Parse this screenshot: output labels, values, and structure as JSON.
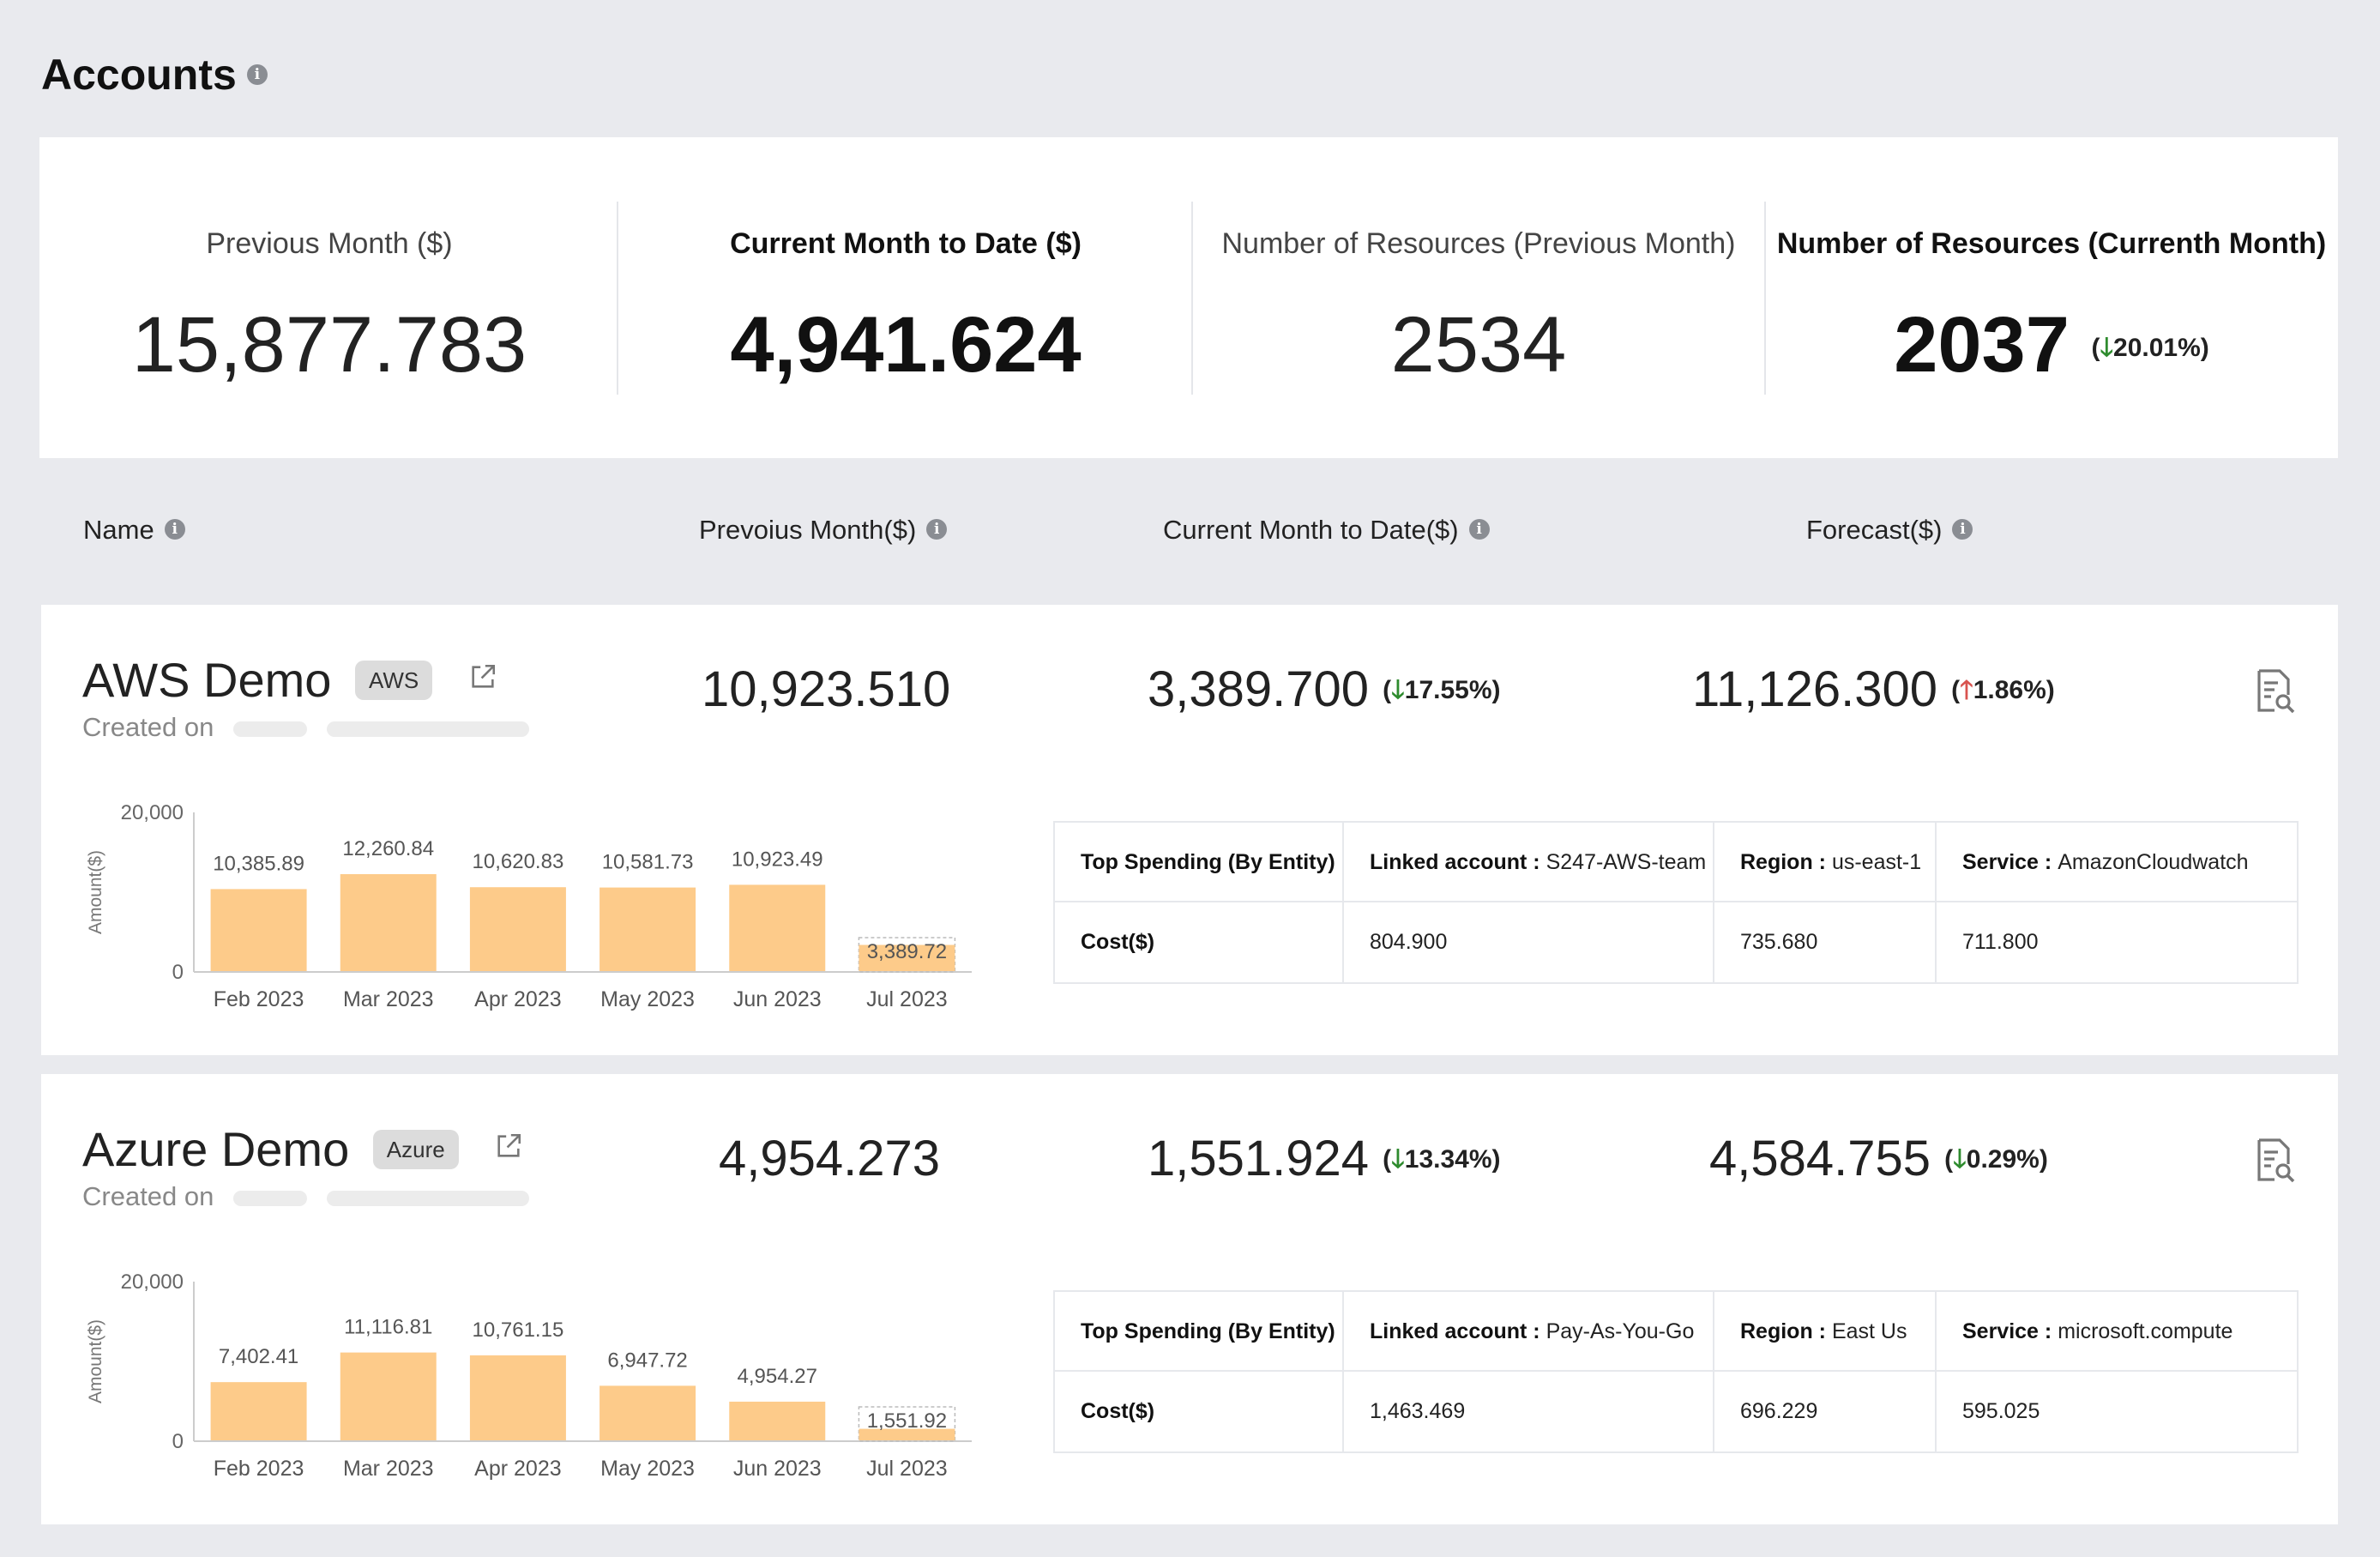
{
  "page": {
    "title": "Accounts"
  },
  "summary": {
    "previous_month_label": "Previous Month ($)",
    "previous_month_value": "15,877.783",
    "current_month_label": "Current Month to Date ($)",
    "current_month_value": "4,941.624",
    "resources_prev_label": "Number of Resources (Previous Month)",
    "resources_prev_value": "2534",
    "resources_curr_label": "Number of Resources (Currenth Month)",
    "resources_curr_value": "2037",
    "resources_curr_change": "20.01%",
    "resources_curr_change_dir": "down"
  },
  "columns": {
    "name": "Name",
    "previous": "Prevoius Month($)",
    "current": "Current Month to Date($)",
    "forecast": "Forecast($)"
  },
  "accounts": [
    {
      "name": "AWS Demo",
      "badge": "AWS",
      "created_label": "Created on",
      "previous": "10,923.510",
      "current": "3,389.700",
      "current_change": "17.55%",
      "current_change_dir": "down",
      "forecast": "11,126.300",
      "forecast_change": "1.86%",
      "forecast_change_dir": "up",
      "chart_data": {
        "type": "bar",
        "ylabel": "Amount($)",
        "ylim": [
          0,
          20000
        ],
        "yticks": [
          "20,000",
          "0"
        ],
        "categories": [
          "Feb 2023",
          "Mar 2023",
          "Apr 2023",
          "May 2023",
          "Jun 2023",
          "Jul 2023"
        ],
        "values": [
          10385.89,
          12260.84,
          10620.83,
          10581.73,
          10923.49,
          3389.72
        ],
        "value_labels": [
          "10,385.89",
          "12,260.84",
          "10,620.83",
          "10,581.73",
          "10,923.49",
          "3,389.72"
        ],
        "bar_color": "#fdcb8a"
      },
      "table": {
        "header": {
          "title": "Top Spending (By Entity)",
          "linked_key": "Linked account :",
          "linked_val": "S247-AWS-team",
          "region_key": "Region :",
          "region_val": "us-east-1",
          "service_key": "Service :",
          "service_val": "AmazonCloudwatch"
        },
        "row": {
          "label": "Cost($)",
          "linked": "804.900",
          "region": "735.680",
          "service": "711.800"
        }
      }
    },
    {
      "name": "Azure Demo",
      "badge": "Azure",
      "created_label": "Created on",
      "previous": "4,954.273",
      "current": "1,551.924",
      "current_change": "13.34%",
      "current_change_dir": "down",
      "forecast": "4,584.755",
      "forecast_change": "0.29%",
      "forecast_change_dir": "down",
      "chart_data": {
        "type": "bar",
        "ylabel": "Amount($)",
        "ylim": [
          0,
          20000
        ],
        "yticks": [
          "20,000",
          "0"
        ],
        "categories": [
          "Feb 2023",
          "Mar 2023",
          "Apr 2023",
          "May 2023",
          "Jun 2023",
          "Jul 2023"
        ],
        "values": [
          7402.41,
          11116.81,
          10761.15,
          6947.72,
          4954.27,
          1551.92
        ],
        "value_labels": [
          "7,402.41",
          "11,116.81",
          "10,761.15",
          "6,947.72",
          "4,954.27",
          "1,551.92"
        ],
        "bar_color": "#fdcb8a"
      },
      "table": {
        "header": {
          "title": "Top Spending (By Entity)",
          "linked_key": "Linked account :",
          "linked_val": "Pay-As-You-Go",
          "region_key": "Region :",
          "region_val": "East Us",
          "service_key": "Service :",
          "service_val": "microsoft.compute"
        },
        "row": {
          "label": "Cost($)",
          "linked": "1,463.469",
          "region": "696.229",
          "service": "595.025"
        }
      }
    }
  ]
}
